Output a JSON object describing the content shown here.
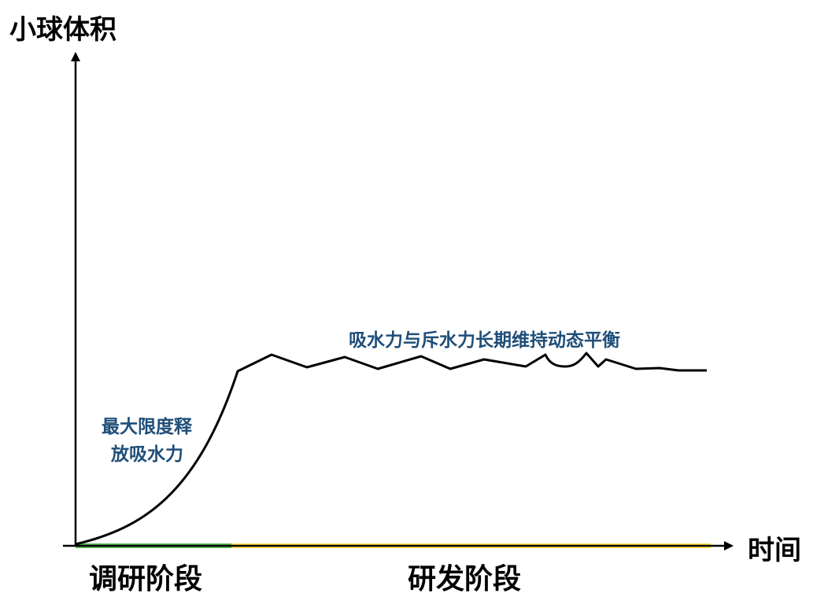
{
  "y_axis": {
    "label": "小球体积"
  },
  "x_axis": {
    "label": "时间"
  },
  "phases": [
    {
      "label": "调研阶段",
      "color": "#5cb85c"
    },
    {
      "label": "研发阶段",
      "color": "#ffe14d"
    }
  ],
  "annotations": {
    "release_line1": "最大限度释",
    "release_line2": "放吸水力",
    "equilibrium": "吸水力与斥水力长期维持动态平衡"
  },
  "colors": {
    "axis": "#000000",
    "curve": "#000000",
    "annotation": "#1f4e79"
  }
}
